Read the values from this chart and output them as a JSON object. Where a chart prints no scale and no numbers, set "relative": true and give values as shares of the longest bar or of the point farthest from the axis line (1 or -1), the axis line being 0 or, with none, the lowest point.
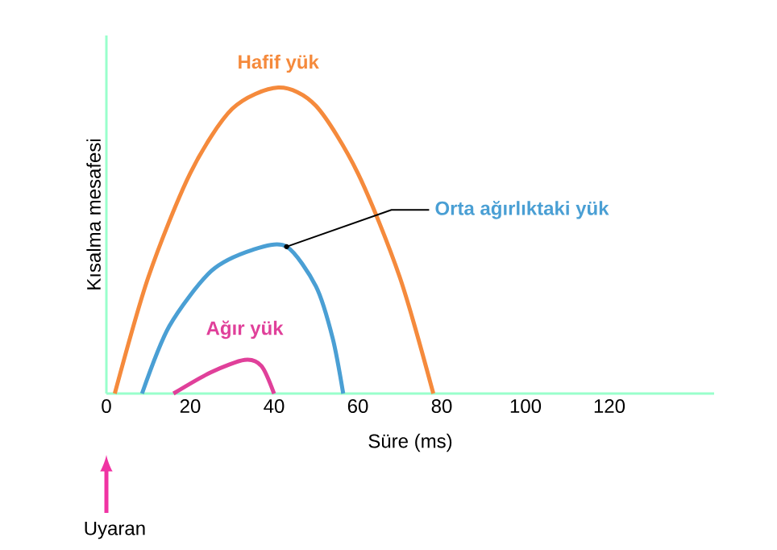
{
  "chart_data": {
    "type": "line",
    "relative": true,
    "xlabel": "Süre (ms)",
    "ylabel": "Kısalma mesafesi",
    "xlim": [
      0,
      145
    ],
    "xticks": [
      0,
      20,
      40,
      60,
      80,
      100,
      120
    ],
    "annotations": [
      "Uyaran"
    ],
    "series": [
      {
        "name": "Hafif yük",
        "color": "#f58a3c",
        "x": [
          2,
          10,
          20,
          30,
          41,
          50,
          60,
          70,
          78
        ],
        "values": [
          0,
          0.38,
          0.72,
          0.93,
          1,
          0.94,
          0.72,
          0.38,
          0
        ]
      },
      {
        "name": "Orta ağırlıktaki yük",
        "color": "#4a9fd4",
        "x": [
          8.5,
          15,
          25,
          35,
          43,
          50,
          54,
          56.5
        ],
        "values": [
          0,
          0.22,
          0.4,
          0.47,
          0.48,
          0.35,
          0.18,
          0
        ]
      },
      {
        "name": "Ağır yük",
        "color": "#e0409a",
        "x": [
          16,
          25,
          33,
          37,
          40
        ],
        "values": [
          0,
          0.07,
          0.11,
          0.09,
          0
        ]
      }
    ]
  }
}
